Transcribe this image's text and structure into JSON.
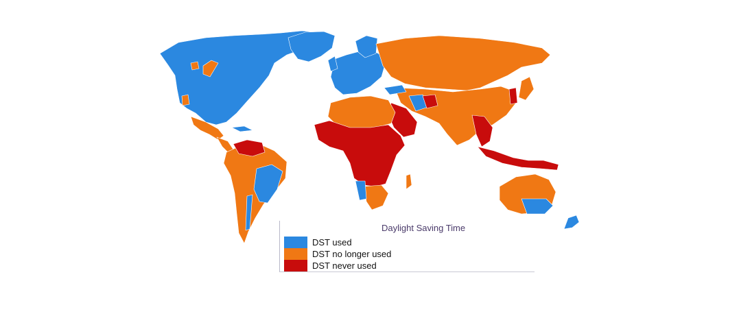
{
  "legend": {
    "title": "Daylight Saving Time",
    "items": [
      {
        "label": "DST used",
        "color": "#2b88e0"
      },
      {
        "label": "DST no longer used",
        "color": "#f07814"
      },
      {
        "label": "DST never used",
        "color": "#c80c0c"
      }
    ]
  },
  "colors": {
    "used": "#2b88e0",
    "no_longer_used": "#f07814",
    "never_used": "#c80c0c",
    "border": "#ffffff",
    "background": "#ffffff"
  }
}
